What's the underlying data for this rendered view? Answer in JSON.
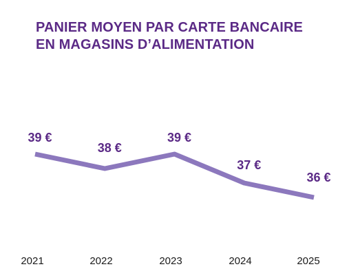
{
  "chart_data": {
    "type": "line",
    "title_lines": [
      "PANIER MOYEN PAR CARTE BANCAIRE",
      "EN MAGASINS D’ALIMENTATION"
    ],
    "categories": [
      "2021",
      "2022",
      "2023",
      "2024",
      "2025"
    ],
    "series": [
      {
        "values": [
          39,
          38,
          39,
          37,
          36
        ],
        "labels": [
          "39 €",
          "38 €",
          "39 €",
          "37 €",
          "36 €"
        ]
      }
    ],
    "grid": false,
    "legend": "none"
  },
  "colors": {
    "title": "#5b2a86",
    "line": "#8c78bd",
    "value_label": "#5b2a86",
    "tick_label": "#1a1a1a"
  }
}
